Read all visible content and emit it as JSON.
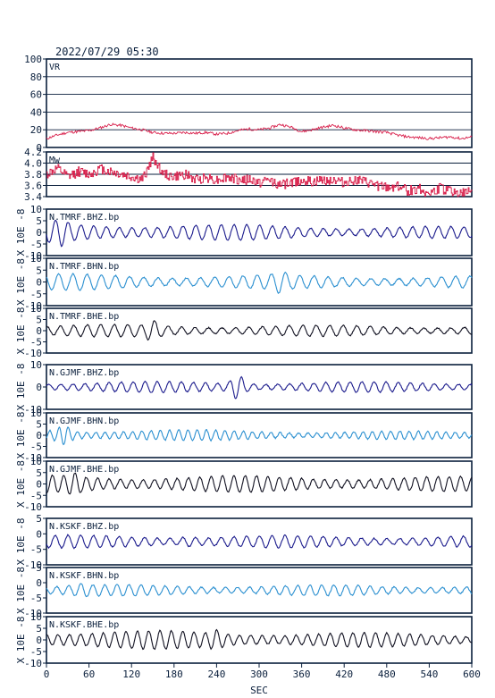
{
  "header": {
    "datetime": "2022/07/29  05:30"
  },
  "colors": {
    "frame": "#0a1f3c",
    "grid": "#0a1f3c",
    "red": "#d81e4a",
    "navy": "#1a1a8c",
    "blue": "#2a8fd0",
    "black": "#101020"
  },
  "chart_data": [
    {
      "type": "line",
      "panel": "vr",
      "label": "VR",
      "ylim": [
        0,
        100
      ],
      "yticks": [
        "100",
        "80",
        "60",
        "40",
        "20",
        "0"
      ],
      "grid": true,
      "color": "red",
      "series": [
        {
          "x": [
            0,
            15,
            30,
            45,
            60,
            75,
            90,
            105,
            120,
            135,
            150,
            165,
            180,
            195,
            210,
            225,
            240,
            255,
            270,
            285,
            300,
            315,
            330,
            345,
            360,
            375,
            390,
            405,
            420,
            435,
            450,
            465,
            480,
            495,
            510,
            525,
            540,
            555,
            570,
            585,
            600
          ],
          "values": [
            10,
            14,
            17,
            18,
            19,
            22,
            26,
            25,
            22,
            20,
            17,
            16,
            16,
            17,
            16,
            17,
            15,
            16,
            19,
            21,
            20,
            22,
            26,
            23,
            18,
            20,
            23,
            25,
            22,
            20,
            19,
            18,
            17,
            14,
            12,
            11,
            10,
            11,
            12,
            10,
            12
          ]
        }
      ]
    },
    {
      "type": "line",
      "panel": "mw",
      "label": "Mw",
      "ylim": [
        3.4,
        4.2
      ],
      "yticks": [
        "4.2",
        "4.0",
        "3.8",
        "3.6",
        "3.4"
      ],
      "grid": true,
      "color": "red",
      "series": [
        {
          "x": [
            0,
            15,
            30,
            45,
            60,
            75,
            90,
            105,
            120,
            135,
            150,
            165,
            180,
            195,
            210,
            225,
            240,
            255,
            270,
            285,
            300,
            315,
            330,
            345,
            360,
            375,
            390,
            405,
            420,
            435,
            450,
            465,
            480,
            495,
            510,
            525,
            540,
            555,
            570,
            585,
            600
          ],
          "values": [
            3.8,
            3.9,
            3.75,
            3.85,
            3.8,
            3.9,
            3.85,
            3.8,
            3.75,
            3.7,
            4.1,
            3.8,
            3.75,
            3.8,
            3.7,
            3.75,
            3.7,
            3.75,
            3.7,
            3.7,
            3.65,
            3.7,
            3.6,
            3.65,
            3.7,
            3.65,
            3.7,
            3.7,
            3.65,
            3.7,
            3.65,
            3.6,
            3.55,
            3.6,
            3.5,
            3.55,
            3.45,
            3.55,
            3.5,
            3.45,
            3.5
          ]
        }
      ]
    },
    {
      "type": "line",
      "panel": "wave",
      "label": "N.TMRF.BHZ.bp",
      "ylabel": "X 10E -8",
      "ylim": [
        -10,
        10
      ],
      "yticks": [
        "10",
        "5",
        "0",
        "-5",
        "-10"
      ],
      "color": "navy",
      "amp": 4.5,
      "period": 18,
      "seed": 1,
      "burst_t": 20,
      "burst_amp": 2.5,
      "decay": 0.0015,
      "amp_min": 1.0
    },
    {
      "type": "line",
      "panel": "wave",
      "label": "N.TMRF.BHN.bp",
      "ylabel": "X 10E -8",
      "ylim": [
        -10,
        10
      ],
      "yticks": [
        "10",
        "5",
        "0",
        "-5",
        "-10"
      ],
      "color": "blue",
      "amp": 3.5,
      "period": 20,
      "seed": 2,
      "burst_t": 330,
      "burst_amp": 2.0,
      "decay": 0.001,
      "amp_min": 1.5
    },
    {
      "type": "line",
      "panel": "wave",
      "label": "N.TMRF.BHE.bp",
      "ylabel": "X 10E -8",
      "ylim": [
        -10,
        10
      ],
      "yticks": [
        "10",
        "5",
        "0",
        "-5",
        "-10"
      ],
      "color": "black",
      "amp": 2.8,
      "period": 19,
      "seed": 3,
      "burst_t": 150,
      "burst_amp": 3.0,
      "decay": 0.0008,
      "amp_min": 1.5
    },
    {
      "type": "line",
      "panel": "wave",
      "label": "N.GJMF.BHZ.bp",
      "ylabel": "X 10E -8",
      "ylim": [
        -10,
        10
      ],
      "yticks": [
        "10",
        "0",
        "-10"
      ],
      "color": "navy",
      "amp": 2.5,
      "period": 17,
      "seed": 4,
      "burst_t": 270,
      "burst_amp": 7.5,
      "decay": 0.0004,
      "amp_min": 1.5
    },
    {
      "type": "line",
      "panel": "wave",
      "label": "N.GJMF.BHN.bp",
      "ylabel": "X 10E -8",
      "ylim": [
        -10,
        10
      ],
      "yticks": [
        "10",
        "5",
        "0",
        "-5",
        "-10"
      ],
      "color": "blue",
      "amp": 3.0,
      "period": 13,
      "seed": 5,
      "burst_t": 25,
      "burst_amp": 4.5,
      "decay": 0.002,
      "amp_min": 1.2
    },
    {
      "type": "line",
      "panel": "wave",
      "label": "N.GJMF.BHE.bp",
      "ylabel": "X 10E -8",
      "ylim": [
        -10,
        10
      ],
      "yticks": [
        "10",
        "5",
        "0",
        "-5",
        "-10"
      ],
      "color": "black",
      "amp": 4.0,
      "period": 16,
      "seed": 6,
      "burst_t": 40,
      "burst_amp": 2.0,
      "decay": 0.0008,
      "amp_min": 2.0
    },
    {
      "type": "line",
      "panel": "wave",
      "label": "N.KSKF.BHZ.bp",
      "ylabel": "X 10E -8",
      "ylim": [
        -10,
        10
      ],
      "yticks": [
        "5",
        "0",
        "-5",
        "-10"
      ],
      "color": "navy",
      "amp": 2.8,
      "period": 18,
      "seed": 7,
      "burst_t": 200,
      "burst_amp": 1.5,
      "decay": 0.0005,
      "amp_min": 1.8
    },
    {
      "type": "line",
      "panel": "wave",
      "label": "N.KSKF.BHN.bp",
      "ylabel": "X 10E -8",
      "ylim": [
        -10,
        10
      ],
      "yticks": [
        "5",
        "0",
        "-5",
        "-10"
      ],
      "color": "blue",
      "amp": 2.5,
      "period": 17,
      "seed": 8,
      "burst_t": 50,
      "burst_amp": 1.0,
      "decay": 0.0005,
      "amp_min": 1.6
    },
    {
      "type": "line",
      "panel": "wave",
      "label": "N.KSKF.BHE.bp",
      "ylabel": "X 10E -8",
      "ylim": [
        -10,
        10
      ],
      "yticks": [
        "10",
        "5",
        "0",
        "-5",
        "-10"
      ],
      "color": "black",
      "amp": 4.5,
      "period": 16,
      "seed": 9,
      "burst_t": 240,
      "burst_amp": 2.5,
      "decay": 0.0012,
      "amp_min": 1.2
    }
  ],
  "xaxis": {
    "label": "SEC",
    "range": [
      0,
      600
    ],
    "ticks": [
      "0",
      "60",
      "120",
      "180",
      "240",
      "300",
      "360",
      "420",
      "480",
      "540",
      "600"
    ]
  }
}
